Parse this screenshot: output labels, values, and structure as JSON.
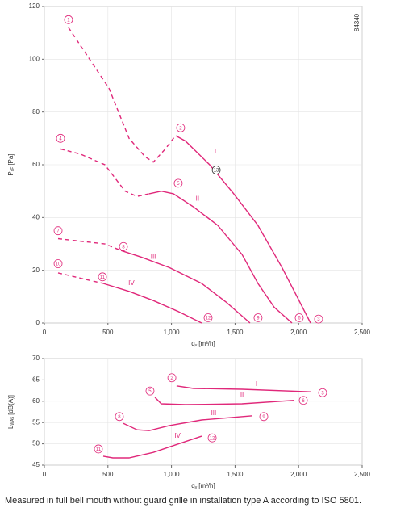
{
  "chart_data": [
    {
      "type": "line",
      "code": "84340",
      "ylabel_main": "P",
      "ylabel_sub": "sF",
      "ylabel_unit": "[Pa]",
      "xlabel_main": "q",
      "xlabel_sub": "v",
      "xlabel_unit": "[m³/h]",
      "xlim": [
        0,
        2500
      ],
      "ylim": [
        0,
        120
      ],
      "xticks": [
        0,
        500,
        {
          "value": 1000,
          "label": "1,000"
        },
        {
          "value": 1500,
          "label": "1,500"
        },
        {
          "value": 2000,
          "label": "2,000"
        },
        {
          "value": 2500,
          "label": "2,500"
        }
      ],
      "yticks": [
        0,
        20,
        40,
        60,
        80,
        100,
        120
      ],
      "grid": true,
      "series": [
        {
          "color": "#e0287a",
          "dashed": true,
          "x": [
            190,
            508,
            666,
            793,
            857,
            952,
            1015,
            1034
          ],
          "values": [
            112,
            89,
            70,
            63,
            61,
            66,
            70,
            71
          ]
        },
        {
          "color": "#e0287a",
          "dashed": false,
          "x": [
            1034,
            1110,
            1300,
            1490,
            1680,
            1870,
            1998,
            2094
          ],
          "values": [
            71,
            69,
            60,
            49,
            37,
            21,
            9,
            0
          ]
        },
        {
          "color": "#e0287a",
          "dashed": true,
          "x": [
            127,
            285,
            476,
            635,
            730,
            825
          ],
          "values": [
            66,
            64,
            60,
            50,
            48,
            49
          ]
        },
        {
          "color": "#e0287a",
          "dashed": false,
          "x": [
            825,
            920,
            1015,
            1174,
            1364,
            1555,
            1680,
            1808,
            1948
          ],
          "values": [
            49,
            50,
            49,
            44,
            37,
            26,
            15,
            6,
            0
          ]
        },
        {
          "color": "#e0287a",
          "dashed": true,
          "x": [
            108,
            285,
            476,
            603
          ],
          "values": [
            32,
            31,
            30,
            27.5
          ]
        },
        {
          "color": "#e0287a",
          "dashed": false,
          "x": [
            603,
            761,
            984,
            1237,
            1428,
            1618
          ],
          "values": [
            27.5,
            25,
            21,
            15,
            8,
            0
          ]
        },
        {
          "color": "#e0287a",
          "dashed": true,
          "x": [
            108,
            285,
            463
          ],
          "values": [
            19,
            17,
            15
          ]
        },
        {
          "color": "#e0287a",
          "dashed": false,
          "x": [
            463,
            666,
            857,
            1047,
            1237
          ],
          "values": [
            15,
            12,
            8.5,
            4.5,
            0
          ]
        }
      ],
      "annotations": [
        {
          "text": "1",
          "x": 190,
          "y": 115,
          "circle": "#e0287a"
        },
        {
          "text": "2",
          "x": 1072,
          "y": 74,
          "circle": "#e0287a"
        },
        {
          "text": "3",
          "x": 2157,
          "y": 1.5,
          "circle": "#e0287a"
        },
        {
          "text": "4",
          "x": 127,
          "y": 70,
          "circle": "#e0287a"
        },
        {
          "text": "5",
          "x": 1053,
          "y": 53,
          "circle": "#e0287a"
        },
        {
          "text": "6",
          "x": 2005,
          "y": 2,
          "circle": "#e0287a"
        },
        {
          "text": "7",
          "x": 108,
          "y": 35,
          "circle": "#e0287a"
        },
        {
          "text": "8",
          "x": 622,
          "y": 29,
          "circle": "#e0287a"
        },
        {
          "text": "9",
          "x": 1681,
          "y": 2,
          "circle": "#e0287a"
        },
        {
          "text": "10",
          "x": 108,
          "y": 22.5,
          "circle": "#e0287a"
        },
        {
          "text": "11",
          "x": 457,
          "y": 17.5,
          "circle": "#e0287a"
        },
        {
          "text": "12",
          "x": 1288,
          "y": 2,
          "circle": "#e0287a"
        },
        {
          "text": "13",
          "x": 1352,
          "y": 58,
          "circle": "#333333"
        },
        {
          "text": "I",
          "x": 1345,
          "y": 65
        },
        {
          "text": "II",
          "x": 1205,
          "y": 47
        },
        {
          "text": "III",
          "x": 857,
          "y": 25
        },
        {
          "text": "IV",
          "x": 685,
          "y": 15
        }
      ]
    },
    {
      "type": "line",
      "ylabel_main": "L",
      "ylabel_sub": "WA5",
      "ylabel_unit": "[dB(A)]",
      "xlabel_main": "q",
      "xlabel_sub": "v",
      "xlabel_unit": "[m³/h]",
      "xlim": [
        0,
        2500
      ],
      "ylim": [
        45,
        70
      ],
      "xticks": [
        0,
        500,
        {
          "value": 1000,
          "label": "1,000"
        },
        {
          "value": 1500,
          "label": "1,500"
        },
        {
          "value": 2000,
          "label": "2,000"
        },
        {
          "value": 2500,
          "label": "2,500"
        }
      ],
      "yticks": [
        45,
        50,
        55,
        60,
        65,
        70
      ],
      "grid": true,
      "series": [
        {
          "color": "#e0287a",
          "dashed": false,
          "x": [
            1040,
            1174,
            1555,
            2094
          ],
          "values": [
            63.6,
            63,
            62.8,
            62.2
          ]
        },
        {
          "color": "#e0287a",
          "dashed": false,
          "x": [
            870,
            920,
            1110,
            1555,
            1967
          ],
          "values": [
            60.9,
            59.4,
            59.2,
            59.4,
            60.2
          ]
        },
        {
          "color": "#e0287a",
          "dashed": false,
          "x": [
            622,
            730,
            825,
            984,
            1237,
            1637
          ],
          "values": [
            54.8,
            53.3,
            53.1,
            54.3,
            55.6,
            56.6
          ]
        },
        {
          "color": "#e0287a",
          "dashed": false,
          "x": [
            463,
            539,
            666,
            857,
            1047,
            1237
          ],
          "values": [
            47.1,
            46.7,
            46.7,
            48,
            49.9,
            51.8
          ]
        }
      ],
      "annotations": [
        {
          "text": "2",
          "x": 1003,
          "y": 65.5,
          "circle": "#e0287a"
        },
        {
          "text": "3",
          "x": 2189,
          "y": 62,
          "circle": "#e0287a"
        },
        {
          "text": "5",
          "x": 831,
          "y": 62.4,
          "circle": "#e0287a"
        },
        {
          "text": "6",
          "x": 2037,
          "y": 60.2,
          "circle": "#e0287a"
        },
        {
          "text": "8",
          "x": 590,
          "y": 56.4,
          "circle": "#e0287a"
        },
        {
          "text": "9",
          "x": 1726,
          "y": 56.4,
          "circle": "#e0287a"
        },
        {
          "text": "11",
          "x": 425,
          "y": 48.8,
          "circle": "#e0287a"
        },
        {
          "text": "12",
          "x": 1320,
          "y": 51.4,
          "circle": "#e0287a"
        },
        {
          "text": "I",
          "x": 1669,
          "y": 64
        },
        {
          "text": "II",
          "x": 1555,
          "y": 61.3
        },
        {
          "text": "III",
          "x": 1332,
          "y": 57.1
        },
        {
          "text": "IV",
          "x": 1047,
          "y": 51.8
        }
      ]
    }
  ],
  "caption": "Measured in full bell mouth without guard grille in installation type A according to ISO 5801."
}
